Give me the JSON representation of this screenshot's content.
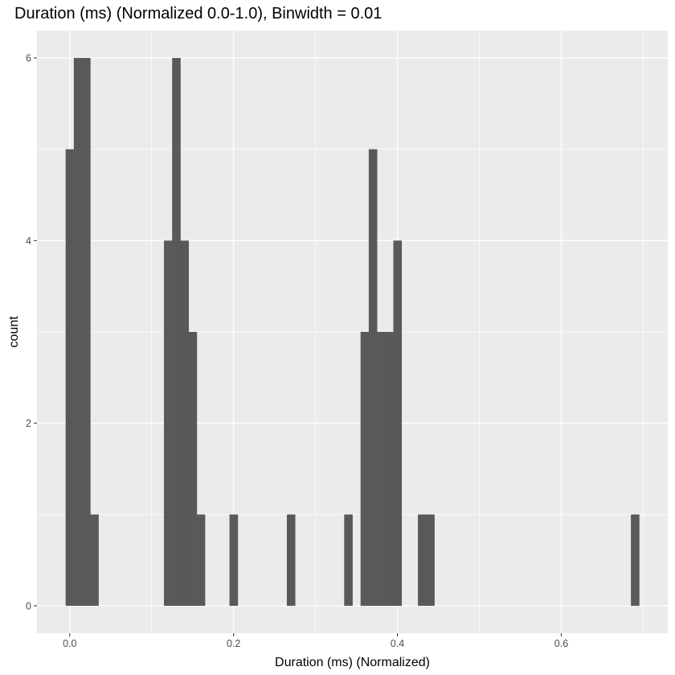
{
  "chart_data": {
    "type": "bar",
    "title": "Duration (ms) (Normalized 0.0-1.0), Binwidth = 0.01",
    "xlabel": "Duration (ms) (Normalized)",
    "ylabel": "count",
    "binwidth": 0.01,
    "xlim": [
      -0.04,
      0.73
    ],
    "ylim": [
      -0.3,
      6.3
    ],
    "x_ticks": [
      0.0,
      0.2,
      0.4,
      0.6
    ],
    "x_tick_labels": [
      "0.0",
      "0.2",
      "0.4",
      "0.6"
    ],
    "y_ticks": [
      0,
      2,
      4,
      6
    ],
    "y_tick_labels": [
      "0",
      "2",
      "4",
      "6"
    ],
    "grid": true,
    "bins": [
      {
        "x": 0.0,
        "count": 5
      },
      {
        "x": 0.01,
        "count": 6
      },
      {
        "x": 0.02,
        "count": 6
      },
      {
        "x": 0.03,
        "count": 1
      },
      {
        "x": 0.12,
        "count": 4
      },
      {
        "x": 0.13,
        "count": 6
      },
      {
        "x": 0.14,
        "count": 4
      },
      {
        "x": 0.15,
        "count": 3
      },
      {
        "x": 0.16,
        "count": 1
      },
      {
        "x": 0.2,
        "count": 1
      },
      {
        "x": 0.27,
        "count": 1
      },
      {
        "x": 0.34,
        "count": 1
      },
      {
        "x": 0.36,
        "count": 3
      },
      {
        "x": 0.37,
        "count": 5
      },
      {
        "x": 0.38,
        "count": 3
      },
      {
        "x": 0.39,
        "count": 3
      },
      {
        "x": 0.4,
        "count": 4
      },
      {
        "x": 0.43,
        "count": 1
      },
      {
        "x": 0.44,
        "count": 1
      },
      {
        "x": 0.69,
        "count": 1
      }
    ]
  },
  "colors": {
    "panel": "#ebebeb",
    "grid_major": "#ffffff",
    "bar": "#595959",
    "tick": "#333333"
  }
}
